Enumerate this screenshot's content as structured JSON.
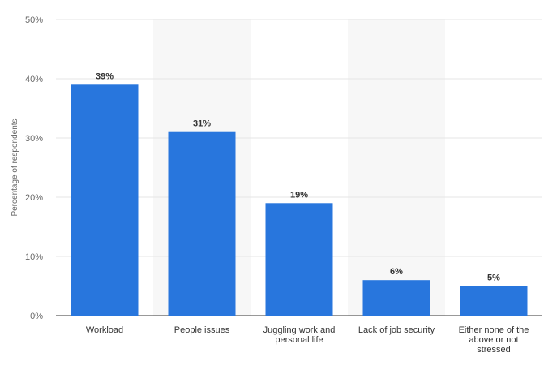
{
  "chart_data": {
    "type": "bar",
    "ylabel": "Percentage of respondents",
    "categories": [
      "Workload",
      "People issues",
      "Juggling work and personal life",
      "Lack of job security",
      "Either none of the above or not stressed"
    ],
    "category_lines": [
      [
        "Workload"
      ],
      [
        "People issues"
      ],
      [
        "Juggling work and",
        "personal life"
      ],
      [
        "Lack of job security"
      ],
      [
        "Either none of the",
        "above or not",
        "stressed"
      ]
    ],
    "values": [
      39,
      31,
      19,
      6,
      5
    ],
    "data_labels": [
      "39%",
      "31%",
      "19%",
      "6%",
      "5%"
    ],
    "yticks": [
      "0%",
      "10%",
      "20%",
      "30%",
      "40%",
      "50%"
    ],
    "ylim": [
      0,
      50
    ],
    "grid": true,
    "bar_color": "#2876dd",
    "band_color": "#f7f7f7"
  }
}
